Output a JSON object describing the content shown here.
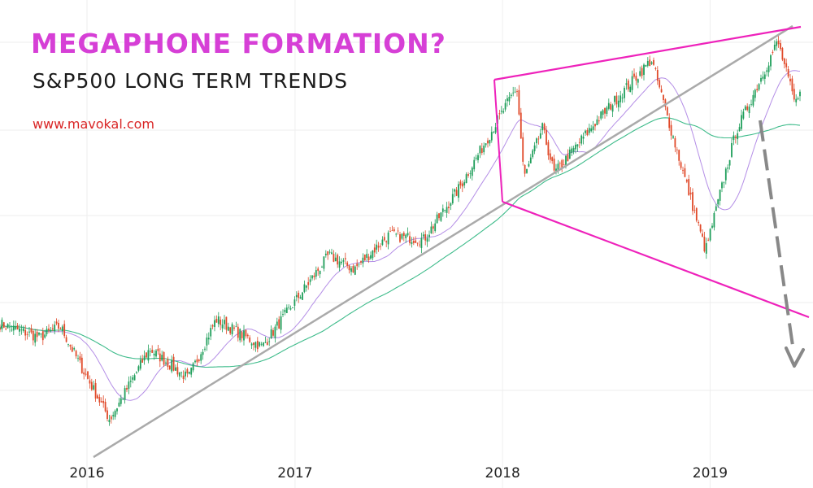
{
  "header": {
    "title": "MEGAPHONE FORMATION?",
    "subtitle": "S&P500 LONG TERM TRENDS",
    "website": "www.mavokal.com"
  },
  "colors": {
    "title": "#d63fd6",
    "website": "#d92525",
    "megaphone": "#ee22bb",
    "trendline": "#aaaaaa",
    "projection": "#888888",
    "candle_up": "#1f9e5a",
    "candle_down": "#e04a2a",
    "ma_short": "#b48ee6",
    "ma_long": "#3dbb8a",
    "grid": "#eeeeee"
  },
  "chart_data": {
    "type": "candlestick",
    "x_axis_ticks": [
      "2016",
      "2017",
      "2018",
      "2019"
    ],
    "x_range": [
      "2015-08",
      "2019-07"
    ],
    "grid": true,
    "trend_points": [
      [
        "2015-08-01",
        0.56
      ],
      [
        "2015-10-10",
        0.5
      ],
      [
        "2015-11-15",
        0.55
      ],
      [
        "2015-12-20",
        0.38
      ],
      [
        "2016-02-10",
        0.14
      ],
      [
        "2016-04-20",
        0.45
      ],
      [
        "2016-06-27",
        0.32
      ],
      [
        "2016-08-15",
        0.58
      ],
      [
        "2016-11-04",
        0.46
      ],
      [
        "2017-03-01",
        0.86
      ],
      [
        "2017-04-15",
        0.8
      ],
      [
        "2017-06-15",
        0.95
      ],
      [
        "2017-08-15",
        0.93
      ],
      [
        "2017-10-15",
        1.15
      ],
      [
        "2018-01-26",
        1.6
      ],
      [
        "2018-02-08",
        1.2
      ],
      [
        "2018-03-12",
        1.42
      ],
      [
        "2018-04-02",
        1.22
      ],
      [
        "2018-06-15",
        1.45
      ],
      [
        "2018-09-20",
        1.72
      ],
      [
        "2018-10-29",
        1.37
      ],
      [
        "2018-12-24",
        0.88
      ],
      [
        "2019-02-15",
        1.4
      ],
      [
        "2019-04-30",
        1.8
      ],
      [
        "2019-05-31",
        1.52
      ],
      [
        "2019-06-10",
        1.62
      ]
    ],
    "series": [],
    "annotations": []
  }
}
